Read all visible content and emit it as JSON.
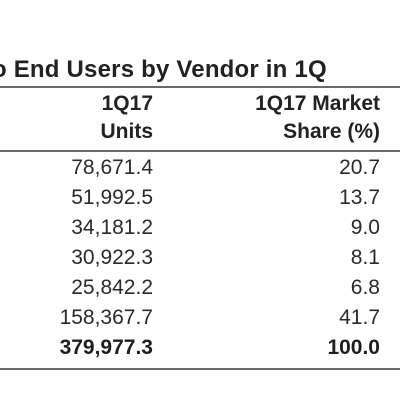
{
  "table": {
    "title": "o End Users by Vendor in 1Q",
    "headers": {
      "units": [
        "1Q17",
        "Units"
      ],
      "share": [
        "1Q17 Market",
        "Share (%)"
      ]
    },
    "rows": [
      {
        "units": "78,671.4",
        "share": "20.7"
      },
      {
        "units": "51,992.5",
        "share": "13.7"
      },
      {
        "units": "34,181.2",
        "share": "9.0"
      },
      {
        "units": "30,922.3",
        "share": "8.1"
      },
      {
        "units": "25,842.2",
        "share": "6.8"
      },
      {
        "units": "158,367.7",
        "share": "41.7"
      },
      {
        "units": "379,977.3",
        "share": "100.0"
      }
    ]
  }
}
